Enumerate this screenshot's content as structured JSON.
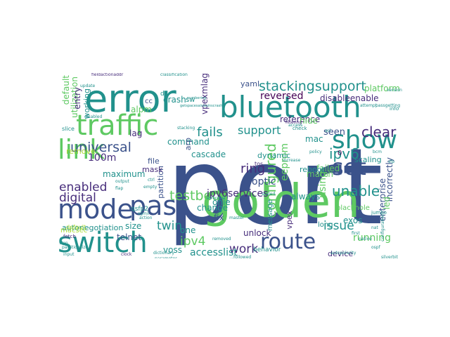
{
  "palette": {
    "navy": "#3b528b",
    "teal": "#21918c",
    "green": "#5ec962",
    "purple": "#440154",
    "indigo": "#472d7b",
    "blue": "#31688e",
    "lime": "#a8db34",
    "yellow": "#fde725"
  },
  "words": [
    {
      "text": "port",
      "color": "navy"
    },
    {
      "text": "golden",
      "color": "green"
    },
    {
      "text": "error",
      "color": "teal"
    },
    {
      "text": "bluetooth",
      "color": "teal"
    },
    {
      "text": "traffic",
      "color": "green"
    },
    {
      "text": "switch",
      "color": "teal"
    },
    {
      "text": "mode",
      "color": "navy"
    },
    {
      "text": "pas",
      "color": "navy"
    },
    {
      "text": "show",
      "color": "teal"
    },
    {
      "text": "link",
      "color": "green"
    },
    {
      "text": "set",
      "color": "navy"
    },
    {
      "text": "route",
      "color": "navy"
    },
    {
      "text": "stackingsupport",
      "color": "teal"
    },
    {
      "text": "testbed",
      "color": "green"
    },
    {
      "text": "universal",
      "color": "navy"
    },
    {
      "text": "configured",
      "color": "green"
    },
    {
      "text": "ipv6",
      "color": "teal"
    },
    {
      "text": "enabled",
      "color": "indigo"
    },
    {
      "text": "digital",
      "color": "indigo"
    },
    {
      "text": "unable",
      "color": "teal"
    },
    {
      "text": "fails",
      "color": "teal"
    },
    {
      "text": "support",
      "color": "teal"
    },
    {
      "text": "ipv4",
      "color": "green"
    },
    {
      "text": "twin",
      "color": "teal"
    },
    {
      "text": "work",
      "color": "indigo"
    },
    {
      "text": "issue",
      "color": "teal"
    },
    {
      "text": "clear",
      "color": "indigo"
    },
    {
      "text": "ring",
      "color": "indigo"
    },
    {
      "text": "ipv6services",
      "color": "indigo"
    },
    {
      "text": "reversed",
      "color": "purple"
    },
    {
      "text": "disableenable",
      "color": "indigo"
    },
    {
      "text": "running",
      "color": "green"
    },
    {
      "text": "accesslist",
      "color": "teal"
    },
    {
      "text": "default",
      "color": "green"
    },
    {
      "text": "utilization",
      "color": "green"
    },
    {
      "text": "incorrectly",
      "color": "navy"
    },
    {
      "text": "enterprise",
      "color": "navy"
    },
    {
      "text": "eeprom",
      "color": "green"
    },
    {
      "text": "autonegotiation",
      "color": "teal"
    },
    {
      "text": "optic",
      "color": "navy"
    },
    {
      "text": "100m",
      "color": "indigo"
    },
    {
      "text": "seen",
      "color": "navy"
    },
    {
      "text": "vpexmlag",
      "color": "indigo"
    },
    {
      "text": "lag",
      "color": "indigo"
    },
    {
      "text": "platform",
      "color": "green"
    },
    {
      "text": "maximum",
      "color": "teal"
    },
    {
      "text": "partition",
      "color": "navy"
    },
    {
      "text": "cascade",
      "color": "teal"
    },
    {
      "text": "command",
      "color": "teal"
    },
    {
      "text": "crash",
      "color": "teal"
    },
    {
      "text": "failed",
      "color": "green"
    },
    {
      "text": "long",
      "color": "teal"
    },
    {
      "text": "exos",
      "color": "teal"
    },
    {
      "text": "reboot",
      "color": "teal"
    },
    {
      "text": "dynamic",
      "color": "teal"
    },
    {
      "text": "reference",
      "color": "indigo"
    },
    {
      "text": "match",
      "color": "green"
    },
    {
      "text": "scaling",
      "color": "teal"
    },
    {
      "text": "using",
      "color": "green"
    },
    {
      "text": "always",
      "color": "teal"
    },
    {
      "text": "mac",
      "color": "teal"
    },
    {
      "text": "hide",
      "color": "green"
    },
    {
      "text": "entry",
      "color": "indigo"
    },
    {
      "text": "working",
      "color": "teal"
    },
    {
      "text": "remove",
      "color": "lime"
    },
    {
      "text": "telnet",
      "color": "navy"
    },
    {
      "text": "fix",
      "color": "navy"
    },
    {
      "text": "onie",
      "color": "teal"
    },
    {
      "text": "change",
      "color": "teal"
    },
    {
      "text": "one",
      "color": "teal"
    },
    {
      "text": "voss",
      "color": "teal"
    },
    {
      "text": "file",
      "color": "navy"
    },
    {
      "text": "mask",
      "color": "indigo"
    },
    {
      "text": "size",
      "color": "teal"
    },
    {
      "text": "unlock",
      "color": "indigo"
    },
    {
      "text": "message",
      "color": "teal"
    },
    {
      "text": "vpex",
      "color": "indigo"
    },
    {
      "text": "device",
      "color": "indigo"
    },
    {
      "text": "yaml",
      "color": "navy"
    },
    {
      "text": "led",
      "color": "green"
    },
    {
      "text": "blackhole",
      "color": "green"
    },
    {
      "text": "alpm",
      "color": "green"
    },
    {
      "text": "arp",
      "color": "navy"
    },
    {
      "text": "sw",
      "color": "teal"
    },
    {
      "text": "macsec",
      "color": "lime"
    },
    {
      "text": "default-small",
      "color": "lime"
    },
    {
      "text": "behavior",
      "color": "teal"
    },
    {
      "text": "cc",
      "color": "navy"
    },
    {
      "text": "dt",
      "color": "teal"
    },
    {
      "text": "0",
      "color": "purple"
    },
    {
      "text": "qsfp2",
      "color": "teal"
    },
    {
      "text": "tos",
      "color": "indigo"
    },
    {
      "text": "slice",
      "color": "teal"
    },
    {
      "text": "fieldactionaddr",
      "color": "indigo"
    },
    {
      "text": "classification",
      "color": "teal"
    },
    {
      "text": "getspacesaislasinscrash",
      "color": "teal"
    },
    {
      "text": "numbering",
      "color": "teal"
    },
    {
      "text": "filtering",
      "color": "indigo"
    },
    {
      "text": "jumbo",
      "color": "teal"
    },
    {
      "text": "policy",
      "color": "teal"
    },
    {
      "text": "increase",
      "color": "teal"
    },
    {
      "text": "autopolarity",
      "color": "teal"
    },
    {
      "text": "dictionary",
      "color": "teal"
    },
    {
      "text": "executing",
      "color": "teal"
    },
    {
      "text": "silverbit",
      "color": "teal"
    },
    {
      "text": "ospf",
      "color": "teal"
    },
    {
      "text": "access",
      "color": "teal"
    },
    {
      "text": "check",
      "color": "teal"
    },
    {
      "text": "info",
      "color": "teal"
    },
    {
      "text": "fetch",
      "color": "indigo"
    },
    {
      "text": "input",
      "color": "teal"
    },
    {
      "text": "version",
      "color": "teal"
    },
    {
      "text": "clock",
      "color": "indigo"
    },
    {
      "text": "acl",
      "color": "teal"
    },
    {
      "text": "nat",
      "color": "teal"
    },
    {
      "text": "flap",
      "color": "teal"
    },
    {
      "text": "vlan",
      "color": "teal"
    },
    {
      "text": "stacking",
      "color": "teal"
    },
    {
      "text": "disabled",
      "color": "teal"
    },
    {
      "text": "update",
      "color": "teal"
    },
    {
      "text": "partitionsize",
      "color": "teal"
    },
    {
      "text": "attempt",
      "color": "teal"
    },
    {
      "text": "passgetting",
      "color": "teal"
    },
    {
      "text": "configuration",
      "color": "teal"
    },
    {
      "text": "first",
      "color": "teal"
    },
    {
      "text": "native",
      "color": "teal"
    },
    {
      "text": "removed",
      "color": "teal"
    },
    {
      "text": "followed",
      "color": "teal"
    },
    {
      "text": "scaled",
      "color": "teal"
    },
    {
      "text": "errorcast",
      "color": "teal"
    },
    {
      "text": "master",
      "color": "teal"
    },
    {
      "text": "bcm",
      "color": "teal"
    },
    {
      "text": "output",
      "color": "teal"
    },
    {
      "text": "sgmii",
      "color": "teal"
    },
    {
      "text": "action",
      "color": "teal"
    },
    {
      "text": "empty",
      "color": "teal"
    },
    {
      "text": "parameter",
      "color": "teal"
    },
    {
      "text": "ctrl",
      "color": "teal"
    },
    {
      "text": "sfp",
      "color": "teal"
    }
  ]
}
